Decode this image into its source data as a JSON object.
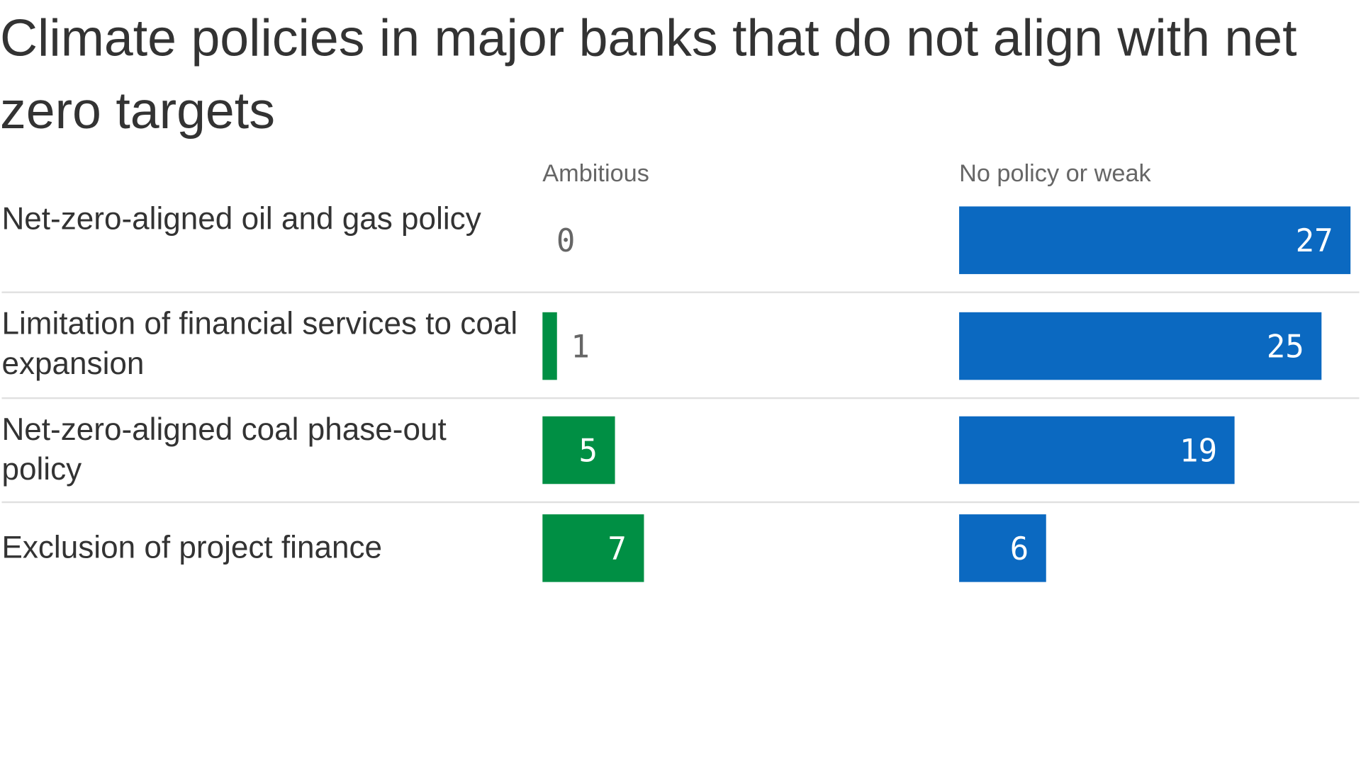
{
  "chart_data": {
    "type": "bar",
    "title": "Climate policies in major banks that do not align with net zero targets",
    "categories": [
      "Net-zero-aligned oil and gas policy",
      "Limitation of financial services to coal expansion",
      "Net-zero-aligned coal phase-out policy",
      "Exclusion of project finance"
    ],
    "series": [
      {
        "name": "Ambitious",
        "values": [
          0,
          1,
          5,
          7
        ],
        "color": "#008f44"
      },
      {
        "name": "No policy or weak",
        "values": [
          27,
          25,
          19,
          6
        ],
        "color": "#0b69c1"
      }
    ],
    "xlim": [
      0,
      27
    ],
    "grid": false,
    "legend": "column-headers"
  },
  "colors": {
    "text": "#333333",
    "muted": "#666666",
    "separator": "#e0e0e0",
    "label_on_bar": "#ffffff",
    "label_outside": "#666666"
  }
}
